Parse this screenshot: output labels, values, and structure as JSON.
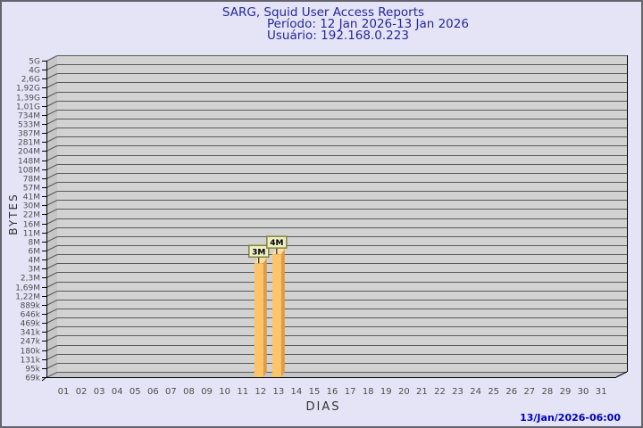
{
  "footer": {
    "timestamp": "13/Jan/2026-06:00"
  },
  "chart_data": {
    "type": "bar",
    "title": "SARG, Squid User Access Reports",
    "subtitle_period": "Período: 12 Jan 2026-13 Jan 2026",
    "subtitle_user": "Usuário: 192.168.0.223",
    "xlabel": "DIAS",
    "ylabel": "BYTES",
    "y_scale": "logarithmic",
    "y_tick_labels": [
      "5G",
      "4G",
      "2,6G",
      "1,92G",
      "1,39G",
      "1,01G",
      "734M",
      "533M",
      "387M",
      "281M",
      "204M",
      "148M",
      "108M",
      "78M",
      "57M",
      "41M",
      "30M",
      "22M",
      "16M",
      "11M",
      "8M",
      "6M",
      "4M",
      "3M",
      "2,3M",
      "1,69M",
      "1,22M",
      "889k",
      "646k",
      "469k",
      "341k",
      "247k",
      "180k",
      "131k",
      "95k",
      "69k"
    ],
    "x_tick_labels": [
      "01",
      "02",
      "03",
      "04",
      "05",
      "06",
      "07",
      "08",
      "09",
      "10",
      "11",
      "12",
      "13",
      "14",
      "15",
      "16",
      "17",
      "18",
      "19",
      "20",
      "21",
      "22",
      "23",
      "24",
      "25",
      "26",
      "27",
      "28",
      "29",
      "30",
      "31"
    ],
    "bars": [
      {
        "day": "12",
        "value_label": "3M"
      },
      {
        "day": "13",
        "value_label": "4M"
      }
    ],
    "legend": null,
    "grid": true,
    "colors": {
      "title": "#26269c",
      "timestamp": "#0000bd",
      "plot_bg": "#d2d2d2",
      "wall": "#c6c6c6",
      "gridline": "#5a5a5a",
      "axis_line": "#000000",
      "tick_text": "#4e4e4e",
      "bar_front": "#fcc56a",
      "bar_side": "#e29b41",
      "bar_top": "#ffdfa0",
      "annotation_bg": "#efefc6",
      "annotation_border": "#83833b",
      "annotation_text": "#000000"
    }
  }
}
